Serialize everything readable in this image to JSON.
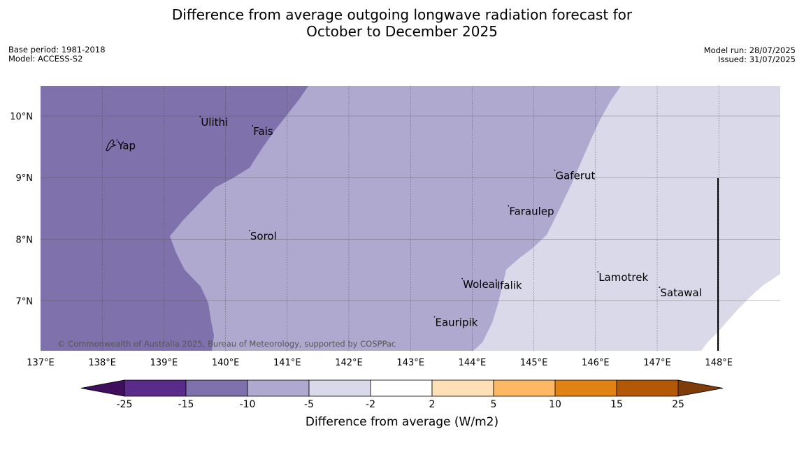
{
  "title": {
    "line1": "Difference from average outgoing longwave radiation forecast for",
    "line2": "October to December 2025"
  },
  "meta_left": {
    "base_period": "Base period: 1981-2018",
    "model": "Model: ACCESS-S2"
  },
  "meta_right": {
    "model_run": "Model run: 28/07/2025",
    "issued": "Issued: 31/07/2025"
  },
  "map": {
    "lon_labels": [
      "137°E",
      "138°E",
      "139°E",
      "140°E",
      "141°E",
      "142°E",
      "143°E",
      "144°E",
      "145°E",
      "146°E",
      "147°E",
      "148°E"
    ],
    "lat_labels": [
      "10°N",
      "9°N",
      "8°N",
      "7°N"
    ],
    "places": [
      {
        "name": "Yap",
        "lon": 138.25,
        "lat": 9.52
      },
      {
        "name": "Ulithi",
        "lon": 139.6,
        "lat": 9.9
      },
      {
        "name": "Fais",
        "lon": 140.45,
        "lat": 9.75
      },
      {
        "name": "Gaferut",
        "lon": 145.35,
        "lat": 9.03
      },
      {
        "name": "Faraulep",
        "lon": 144.6,
        "lat": 8.45
      },
      {
        "name": "Sorol",
        "lon": 140.4,
        "lat": 8.05
      },
      {
        "name": "Lamotrek",
        "lon": 146.05,
        "lat": 7.38
      },
      {
        "name": "Woleai",
        "lon": 143.85,
        "lat": 7.27
      },
      {
        "name": "Ifalik",
        "lon": 144.4,
        "lat": 7.25
      },
      {
        "name": "Satawal",
        "lon": 147.05,
        "lat": 7.13
      },
      {
        "name": "Eauripik",
        "lon": 143.4,
        "lat": 6.65
      }
    ],
    "copyright": "© Commonwealth of Australia 2025, Bureau of Meteorology, supported by COSPPac",
    "colors": {
      "band_-15_-10": "#7f71ab",
      "band_-10_-5": "#afa9d0",
      "band_-5_-2": "#d9d9ea",
      "band_-2_2": "#ffffff"
    }
  },
  "colorbar": {
    "tick_labels": [
      "-25",
      "-15",
      "-10",
      "-5",
      "-2",
      "2",
      "5",
      "10",
      "15",
      "25"
    ],
    "colors": [
      "#3f0f5e",
      "#5b2b8a",
      "#7f71ab",
      "#afa9d0",
      "#d9d9ea",
      "#ffffff",
      "#fee0b6",
      "#fdb863",
      "#e08214",
      "#b35806",
      "#7f3b08"
    ],
    "title": "Difference from average (W/m2)"
  }
}
